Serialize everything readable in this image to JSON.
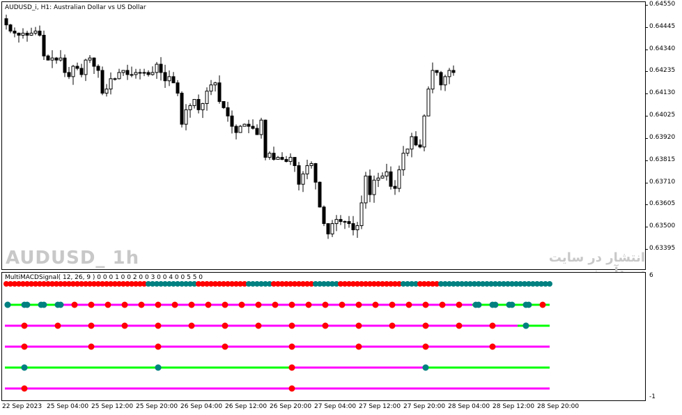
{
  "chart": {
    "title": "AUDUSD_i, H1:  Australian Dollar vs US Dollar",
    "watermark_symbol": "AUDUSD_ 1h",
    "watermark_site": "انتشار در سایت سودآموز"
  },
  "indicator": {
    "title": "MultiMACDSignal( 12, 26, 9 ) 0 0 0 1 0 0 2 0 0 3 0 0 4 0 0 5 5 0",
    "scale_top": "6",
    "scale_bottom": "-1"
  },
  "colors": {
    "bull_body": "#ffffff",
    "bear_body": "#000000",
    "dot_red": "#ff0000",
    "dot_teal": "#008080",
    "line_magenta": "#ff00ff",
    "line_green": "#00ff00"
  },
  "chart_data": {
    "type": "candlestick",
    "symbol": "AUDUSD_i",
    "timeframe": "H1",
    "y_ticks": [
      "0.64550",
      "0.64445",
      "0.64340",
      "0.64235",
      "0.64130",
      "0.64025",
      "0.63920",
      "0.63815",
      "0.63710",
      "0.63605",
      "0.63500",
      "0.63395"
    ],
    "y_range": [
      0.6334,
      0.6455
    ],
    "x_ticks": [
      "22 Sep 2023",
      "25 Sep 04:00",
      "25 Sep 12:00",
      "25 Sep 20:00",
      "26 Sep 04:00",
      "26 Sep 12:00",
      "26 Sep 20:00",
      "27 Sep 04:00",
      "27 Sep 12:00",
      "27 Sep 20:00",
      "28 Sep 04:00",
      "28 Sep 12:00",
      "28 Sep 20:00"
    ],
    "closes": [
      0.6445,
      0.6442,
      0.6441,
      0.644,
      0.6441,
      0.644,
      0.6441,
      0.6442,
      0.644,
      0.643,
      0.6428,
      0.6429,
      0.6428,
      0.6429,
      0.6422,
      0.642,
      0.6425,
      0.6424,
      0.6421,
      0.6428,
      0.6429,
      0.6425,
      0.6423,
      0.6412,
      0.6414,
      0.6419,
      0.6419,
      0.6422,
      0.6423,
      0.6421,
      0.6421,
      0.6422,
      0.6422,
      0.6422,
      0.6421,
      0.6422,
      0.6426,
      0.6422,
      0.6418,
      0.642,
      0.6417,
      0.6412,
      0.6397,
      0.6404,
      0.6406,
      0.6409,
      0.6404,
      0.6407,
      0.6413,
      0.6416,
      0.6417,
      0.6408,
      0.6405,
      0.6401,
      0.6396,
      0.6393,
      0.6396,
      0.6397,
      0.6396,
      0.6395,
      0.6392,
      0.6399,
      0.6381,
      0.6383,
      0.638,
      0.6381,
      0.638,
      0.6379,
      0.6381,
      0.6377,
      0.6368,
      0.6373,
      0.6377,
      0.6378,
      0.6369,
      0.6357,
      0.6349,
      0.6344,
      0.6349,
      0.6351,
      0.635,
      0.635,
      0.6349,
      0.6346,
      0.6348,
      0.6359,
      0.6372,
      0.6363,
      0.637,
      0.6371,
      0.6372,
      0.6374,
      0.6367,
      0.6366,
      0.6375,
      0.6383,
      0.6385,
      0.6391,
      0.6387,
      0.6386,
      0.6401,
      0.6414,
      0.6423,
      0.6422,
      0.6416,
      0.642,
      0.6423,
      0.6422
    ],
    "ind_rows": [
      {
        "label": "row1",
        "line_segments": [
          {
            "from": 0,
            "to": 1,
            "color": "line_magenta"
          }
        ],
        "dots_all": true
      },
      {
        "label": "row2"
      },
      {
        "label": "row3"
      },
      {
        "label": "row4"
      },
      {
        "label": "row5"
      },
      {
        "label": "row6"
      }
    ]
  }
}
